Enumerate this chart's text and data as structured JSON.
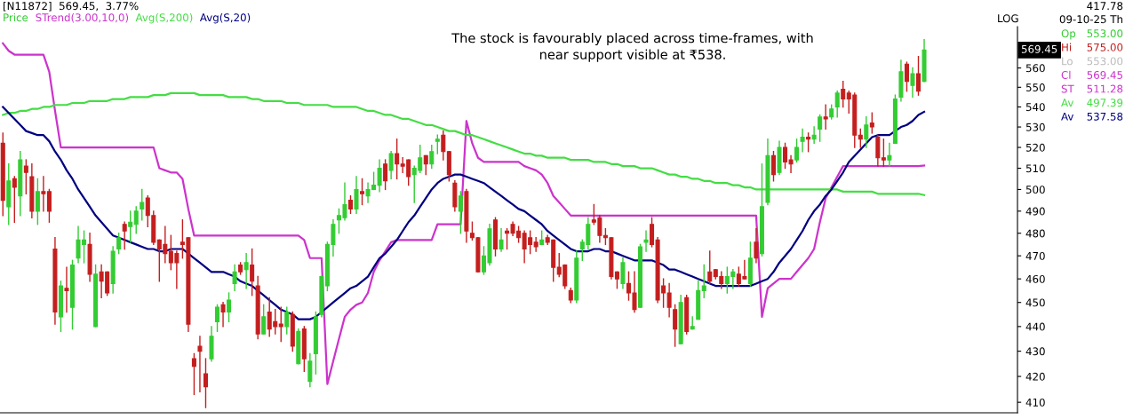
{
  "chart_data": {
    "type": "candlestick",
    "title": "[N11872]  569.45,  3.77%",
    "annotations": [
      "The stock is favourably placed across time-frames, with\nnear support visible at ₹538.",
      "LOG",
      "569.45",
      "417.78",
      "09-10-25 Th",
      "Op",
      "553.00",
      "Hi",
      "575.00",
      "Lo",
      "553.00",
      "Cl",
      "569.45",
      "ST",
      "511.28",
      "Av",
      "497.39",
      "Av",
      "537.58"
    ],
    "log": true,
    "tick_labels": "y",
    "categories": [
      null,
      null,
      null,
      null,
      null,
      null,
      null,
      null,
      null,
      null,
      null,
      null,
      null,
      null,
      null,
      null,
      null,
      null,
      null,
      null,
      null,
      null,
      null,
      null,
      null,
      null,
      null,
      null,
      null,
      null,
      null,
      null,
      null,
      null,
      null,
      null,
      null,
      null,
      null,
      null,
      null,
      null,
      null,
      null,
      null,
      null,
      null,
      null,
      null,
      null,
      null,
      null,
      null,
      null,
      null,
      null,
      null,
      null,
      null,
      null,
      null,
      null,
      null,
      null,
      null,
      null,
      null,
      null,
      null,
      null,
      null,
      null,
      null,
      null,
      null,
      null,
      null,
      null,
      null,
      null,
      null,
      null,
      null,
      null,
      null,
      null,
      null,
      null,
      null,
      null,
      null,
      null,
      null,
      null,
      null,
      null,
      null,
      null,
      null,
      null,
      null,
      null,
      null,
      null,
      null,
      null,
      null,
      null,
      null,
      null,
      null,
      null,
      null,
      null,
      null,
      null,
      null,
      null,
      null,
      null,
      null,
      null,
      null,
      null,
      null,
      null,
      null,
      null,
      null,
      null,
      null,
      null,
      null,
      null,
      null,
      null,
      null,
      null,
      null,
      null,
      null,
      null,
      null,
      null,
      null,
      null,
      null,
      null,
      null,
      null,
      null,
      null,
      null,
      null,
      null,
      null,
      null,
      null,
      null,
      null
    ],
    "ylim": [
      406,
      582
    ],
    "yticks": [
      410,
      420,
      430,
      440,
      450,
      460,
      470,
      480,
      490,
      500,
      510,
      520,
      530,
      540,
      550,
      560
    ],
    "series": [
      {
        "name": "Price",
        "colors": [
          "#c41e1e",
          "#33cc33",
          "#c41e1e",
          "#33cc33",
          "#c41e1e",
          "#c41e1e",
          "#33cc33",
          "#c41e1e",
          "#c41e1e",
          "#c41e1e",
          "#33cc33",
          "#c41e1e",
          "#33cc33",
          "#33cc33",
          "#33cc33",
          "#c41e1e",
          "#33cc33",
          "#c41e1e",
          "#c41e1e",
          "#33cc33",
          "#33cc33",
          "#c41e1e",
          "#33cc33",
          "#33cc33",
          "#33cc33",
          "#c41e1e",
          "#c41e1e",
          "#c41e1e",
          "#c41e1e",
          "#c41e1e",
          "#c41e1e",
          "#c41e1e",
          "#c41e1e",
          "#c41e1e",
          "#c41e1e",
          "#c41e1e",
          "#33cc33",
          "#33cc33",
          "#c41e1e",
          "#33cc33",
          "#33cc33",
          "#c41e1e",
          "#33cc33",
          "#c41e1e",
          "#c41e1e",
          "#33cc33",
          "#c41e1e",
          "#c41e1e",
          "#c41e1e",
          "#33cc33",
          "#c41e1e",
          "#33cc33",
          "#c41e1e",
          "#33cc33",
          "#33cc33",
          "#33cc33",
          "#33cc33",
          "#33cc33",
          "#33cc33",
          "#33cc33",
          "#c41e1e",
          "#33cc33",
          "#c41e1e",
          "#33cc33",
          "#33cc33",
          "#33cc33",
          "#c41e1e",
          "#33cc33",
          "#c41e1e",
          "#c41e1e",
          "#c41e1e",
          "#33cc33",
          "#33cc33",
          "#c41e1e",
          "#33cc33",
          "#33cc33",
          "#c41e1e",
          "#c41e1e",
          "#c41e1e",
          "#33cc33",
          "#c41e1e",
          "#c41e1e",
          "#c41e1e",
          "#33cc33",
          "#33cc33",
          "#c41e1e",
          "#33cc33",
          "#c41e1e",
          "#c41e1e",
          "#c41e1e",
          "#c41e1e",
          "#c41e1e",
          "#c41e1e",
          "#33cc33",
          "#c41e1e",
          "#c41e1e",
          "#c41e1e",
          "#c41e1e",
          "#c41e1e",
          "#33cc33",
          "#33cc33",
          "#33cc33",
          "#c41e1e",
          "#c41e1e",
          "#c41e1e",
          "#c41e1e",
          "#c41e1e",
          "#33cc33",
          "#c41e1e",
          "#c41e1e",
          "#33cc33",
          "#33cc33",
          "#c41e1e",
          "#c41e1e",
          "#c41e1e",
          "#c41e1e",
          "#c41e1e",
          "#33cc33",
          "#c41e1e",
          "#33cc33",
          "#33cc33",
          "#33cc33",
          "#c41e1e",
          "#c41e1e",
          "#c41e1e",
          "#33cc33",
          "#33cc33",
          "#c41e1e",
          "#c41e1e",
          "#33cc33",
          "#c41e1e",
          "#33cc33",
          "#33cc33",
          "#c41e1e",
          "#33cc33",
          "#c41e1e",
          "#c41e1e",
          "#33cc33",
          "#33cc33",
          "#c41e1e",
          "#33cc33",
          "#33cc33",
          "#c41e1e",
          "#33cc33",
          "#33cc33",
          "#c41e1e",
          "#c41e1e",
          "#c41e1e",
          "#c41e1e",
          "#33cc33",
          "#c41e1e",
          "#c41e1e",
          "#c41e1e",
          "#33cc33",
          "#33cc33",
          "#33cc33",
          "#c41e1e",
          "#33cc33",
          "#c41e1e",
          "#33cc33"
        ],
        "ohlc": [
          [
            522,
            527,
            488,
            495
          ],
          [
            492,
            512,
            484,
            504
          ],
          [
            505,
            506,
            485,
            501
          ],
          [
            497,
            518,
            488,
            514
          ],
          [
            511,
            514,
            498,
            508
          ],
          [
            506,
            512,
            487,
            490
          ],
          [
            490,
            505,
            484,
            499
          ],
          [
            499,
            506,
            490,
            498
          ],
          [
            499,
            500,
            485,
            490
          ],
          [
            473,
            478,
            441,
            446
          ],
          [
            444,
            459,
            438,
            457
          ],
          [
            456,
            465,
            446,
            455
          ],
          [
            448,
            468,
            439,
            466
          ],
          [
            469,
            483,
            467,
            477
          ],
          [
            475,
            481,
            467,
            477
          ],
          [
            475,
            480,
            459,
            462
          ],
          [
            440,
            466,
            440,
            462
          ],
          [
            463,
            466,
            452,
            459
          ],
          [
            463,
            463,
            453,
            454
          ],
          [
            458,
            474,
            454,
            472
          ],
          [
            473,
            480,
            471,
            478
          ],
          [
            484,
            485,
            473,
            481
          ],
          [
            483,
            490,
            476,
            485
          ],
          [
            484,
            492,
            480,
            490
          ],
          [
            491,
            500,
            486,
            494
          ],
          [
            496,
            497,
            483,
            488
          ],
          [
            488,
            490,
            475,
            476
          ],
          [
            477,
            477,
            459,
            473
          ],
          [
            475,
            483,
            467,
            471
          ],
          [
            472,
            479,
            464,
            467
          ],
          [
            471,
            472,
            456,
            467
          ],
          [
            476,
            486,
            469,
            475
          ],
          [
            478,
            478,
            438,
            441
          ],
          [
            427,
            429,
            413,
            424
          ],
          [
            432,
            436,
            414,
            430
          ],
          [
            421,
            427,
            408,
            416
          ],
          [
            427,
            440,
            426,
            436
          ],
          [
            442,
            449,
            438,
            448
          ],
          [
            449,
            450,
            440,
            446
          ],
          [
            446,
            454,
            442,
            451
          ],
          [
            458,
            466,
            455,
            463
          ],
          [
            466,
            467,
            462,
            463
          ],
          [
            464,
            471,
            456,
            467
          ],
          [
            466,
            473,
            453,
            459
          ],
          [
            457,
            461,
            435,
            437
          ],
          [
            437,
            449,
            437,
            444
          ],
          [
            446,
            452,
            436,
            439
          ],
          [
            442,
            447,
            437,
            440
          ],
          [
            441,
            448,
            434,
            440
          ],
          [
            440,
            448,
            437,
            446
          ],
          [
            445,
            446,
            430,
            432
          ],
          [
            425,
            439,
            425,
            438
          ],
          [
            439,
            440,
            422,
            427
          ],
          [
            418,
            429,
            416,
            426
          ],
          [
            429,
            446,
            421,
            444
          ],
          [
            445,
            461,
            444,
            461
          ],
          [
            457,
            476,
            455,
            475
          ],
          [
            475,
            486,
            470,
            484
          ],
          [
            486,
            491,
            480,
            488
          ],
          [
            487,
            503,
            486,
            493
          ],
          [
            495,
            497,
            489,
            491
          ],
          [
            491,
            506,
            489,
            500
          ],
          [
            499,
            505,
            493,
            498
          ],
          [
            497,
            503,
            494,
            500
          ],
          [
            500,
            508,
            500,
            502
          ],
          [
            502,
            514,
            499,
            510
          ],
          [
            512,
            514,
            500,
            504
          ],
          [
            509,
            518,
            505,
            517
          ],
          [
            517,
            524,
            505,
            512
          ],
          [
            512,
            515,
            508,
            511
          ],
          [
            514,
            514,
            502,
            506
          ],
          [
            507,
            511,
            494,
            510
          ],
          [
            509,
            521,
            508,
            515
          ],
          [
            516,
            516,
            507,
            512
          ],
          [
            512,
            521,
            510,
            518
          ],
          [
            523,
            526,
            517,
            524
          ],
          [
            526,
            528,
            514,
            518
          ],
          [
            518,
            518,
            504,
            507
          ],
          [
            503,
            504,
            490,
            492
          ],
          [
            490,
            499,
            480,
            497
          ],
          [
            499,
            500,
            476,
            481
          ],
          [
            480,
            485,
            477,
            478
          ],
          [
            478,
            478,
            463,
            463
          ],
          [
            463,
            474,
            462,
            470
          ],
          [
            467,
            484,
            466,
            482
          ],
          [
            486,
            487,
            470,
            473
          ],
          [
            473,
            482,
            472,
            477
          ],
          [
            481,
            482,
            473,
            480
          ],
          [
            484,
            485,
            479,
            480
          ],
          [
            481,
            483,
            476,
            478
          ],
          [
            480,
            481,
            467,
            473
          ],
          [
            478,
            481,
            471,
            475
          ],
          [
            476,
            478,
            472,
            474
          ],
          [
            475,
            481,
            475,
            477
          ],
          [
            478,
            479,
            475,
            476
          ],
          [
            477,
            477,
            459,
            465
          ],
          [
            465,
            471,
            461,
            462
          ],
          [
            466,
            466,
            456,
            457
          ],
          [
            455,
            456,
            450,
            451
          ],
          [
            451,
            472,
            450,
            469
          ],
          [
            473,
            477,
            468,
            476
          ],
          [
            475,
            487,
            473,
            484
          ],
          [
            486,
            493,
            484,
            485
          ],
          [
            487,
            488,
            476,
            479
          ],
          [
            479,
            482,
            475,
            478
          ],
          [
            478,
            478,
            460,
            461
          ],
          [
            463,
            463,
            456,
            460
          ],
          [
            458,
            469,
            456,
            467
          ],
          [
            458,
            463,
            451,
            454
          ],
          [
            454,
            463,
            446,
            447
          ],
          [
            448,
            475,
            448,
            474
          ],
          [
            476,
            481,
            472,
            477
          ],
          [
            484,
            487,
            474,
            475
          ],
          [
            477,
            478,
            450,
            451
          ],
          [
            457,
            460,
            448,
            454
          ],
          [
            454,
            458,
            444,
            448
          ],
          [
            447,
            449,
            432,
            439
          ],
          [
            433,
            453,
            433,
            450
          ],
          [
            452,
            453,
            437,
            438
          ],
          [
            439,
            444,
            439,
            440
          ],
          [
            443,
            459,
            443,
            455
          ],
          [
            455,
            466,
            452,
            457
          ],
          [
            463,
            472,
            458,
            459
          ],
          [
            464,
            464,
            460,
            461
          ],
          [
            461,
            463,
            456,
            458
          ],
          [
            458,
            465,
            454,
            461
          ],
          [
            461,
            464,
            456,
            463
          ],
          [
            462,
            465,
            457,
            458
          ],
          [
            461,
            468,
            460,
            460
          ],
          [
            458,
            476,
            457,
            469
          ],
          [
            476,
            482,
            467,
            469
          ],
          [
            471,
            512,
            470,
            492
          ],
          [
            494,
            524,
            493,
            516
          ],
          [
            516,
            518,
            504,
            507
          ],
          [
            508,
            523,
            507,
            520
          ],
          [
            520,
            522,
            510,
            513
          ],
          [
            514,
            516,
            508,
            512
          ],
          [
            514,
            524,
            513,
            520
          ],
          [
            523,
            529,
            518,
            525
          ],
          [
            525,
            527,
            518,
            524
          ],
          [
            524,
            530,
            522,
            526
          ],
          [
            529,
            536,
            523,
            535
          ],
          [
            535,
            541,
            529,
            534
          ],
          [
            535,
            541,
            534,
            539
          ],
          [
            540,
            548,
            535,
            547
          ],
          [
            549,
            553,
            540,
            544
          ],
          [
            547,
            548,
            537,
            544
          ],
          [
            546,
            547,
            520,
            526
          ],
          [
            526,
            529,
            520,
            524
          ],
          [
            524,
            535,
            520,
            531
          ],
          [
            532,
            537,
            527,
            530
          ],
          [
            525,
            526,
            511,
            515
          ],
          [
            515,
            524,
            511,
            514
          ],
          [
            514,
            522,
            511,
            516
          ],
          [
            522,
            546,
            522,
            544
          ],
          [
            545,
            564,
            543,
            558
          ],
          [
            562,
            563,
            548,
            553
          ],
          [
            551,
            560,
            545,
            557
          ],
          [
            557,
            566,
            546,
            548
          ],
          [
            553,
            575,
            553,
            569.45
          ]
        ]
      },
      {
        "name": "STrend(3.00,10,0)",
        "type": "line",
        "color": "#cc33cc",
        "values": [
          573,
          569,
          567,
          567,
          567,
          567,
          567,
          567,
          558,
          538,
          520,
          520,
          520,
          520,
          520,
          520,
          520,
          520,
          520,
          520,
          520,
          520,
          520,
          520,
          520,
          520,
          520,
          510,
          509,
          508,
          508,
          505,
          491,
          479,
          479,
          479,
          479,
          479,
          479,
          479,
          479,
          479,
          479,
          479,
          479,
          479,
          479,
          479,
          479,
          479,
          479,
          479,
          477,
          469,
          469,
          469,
          417,
          426,
          435,
          444,
          447,
          449,
          450,
          454,
          463,
          468,
          472,
          476,
          477,
          477,
          477,
          477,
          477,
          477,
          477,
          484,
          484,
          484,
          484,
          484,
          533,
          522,
          515,
          513,
          513,
          513,
          513,
          513,
          513,
          513,
          511,
          510,
          509,
          507,
          503,
          497,
          494,
          491,
          488,
          488,
          488,
          488,
          488,
          488,
          488,
          488,
          488,
          488,
          488,
          488,
          488,
          488,
          488,
          488,
          488,
          488,
          488,
          488,
          488,
          488,
          488,
          488,
          488,
          488,
          488,
          488,
          488,
          488,
          488,
          488,
          488,
          444,
          456,
          458,
          460,
          460,
          460,
          463,
          466,
          469,
          473,
          485,
          496,
          501,
          506,
          511,
          511,
          511,
          511,
          511,
          511,
          511,
          511,
          511,
          511,
          511,
          511,
          511,
          511,
          511.28
        ]
      },
      {
        "name": "Avg(S,200)",
        "type": "line",
        "color": "#44dd44",
        "values": [
          536,
          537,
          537,
          538,
          538,
          539,
          539,
          540,
          540,
          541,
          541,
          541,
          542,
          542,
          542,
          543,
          543,
          543,
          543,
          544,
          544,
          544,
          545,
          545,
          545,
          545,
          546,
          546,
          546,
          547,
          547,
          547,
          547,
          547,
          546,
          546,
          546,
          546,
          546,
          545,
          545,
          545,
          545,
          544,
          544,
          543,
          543,
          543,
          543,
          542,
          542,
          542,
          541,
          541,
          541,
          541,
          541,
          540,
          540,
          540,
          540,
          540,
          539,
          538,
          538,
          537,
          536,
          536,
          535,
          534,
          534,
          533,
          532,
          531,
          531,
          530,
          529,
          528,
          528,
          527,
          526,
          526,
          525,
          524,
          523,
          522,
          521,
          520,
          519,
          518,
          517,
          517,
          516,
          516,
          515,
          515,
          515,
          515,
          514,
          514,
          514,
          514,
          513,
          513,
          513,
          512,
          512,
          511,
          511,
          511,
          510,
          510,
          510,
          509,
          508,
          507,
          507,
          506,
          506,
          505,
          505,
          504,
          504,
          503,
          503,
          503,
          502,
          502,
          501,
          501,
          500,
          500,
          500,
          500,
          500,
          500,
          500,
          500,
          500,
          500,
          500,
          500,
          500,
          500,
          500,
          499,
          499,
          499,
          499,
          499,
          499,
          498,
          498,
          498,
          498,
          498,
          498,
          498,
          498,
          497.39
        ]
      },
      {
        "name": "Avg(S,20)",
        "type": "line",
        "color": "#000080",
        "values": [
          540,
          537,
          534,
          531,
          528,
          527,
          526,
          526,
          523,
          518,
          514,
          509,
          505,
          500,
          496,
          492,
          488,
          485,
          482,
          479,
          478,
          477,
          476,
          475,
          474,
          473,
          473,
          472,
          472,
          473,
          473,
          473,
          471,
          469,
          467,
          465,
          463,
          463,
          463,
          462,
          461,
          459,
          458,
          457,
          455,
          453,
          451,
          449,
          447,
          446,
          445,
          443,
          443,
          443,
          444,
          446,
          448,
          450,
          452,
          454,
          456,
          457,
          459,
          461,
          465,
          469,
          471,
          474,
          477,
          481,
          485,
          488,
          492,
          496,
          500,
          503,
          505,
          506,
          507,
          507,
          506,
          505,
          504,
          503,
          501,
          499,
          497,
          495,
          493,
          491,
          490,
          488,
          486,
          484,
          481,
          479,
          477,
          475,
          473,
          472,
          472,
          472,
          473,
          473,
          472,
          472,
          471,
          470,
          469,
          468,
          468,
          468,
          468,
          467,
          466,
          464,
          464,
          463,
          462,
          461,
          460,
          459,
          458,
          457,
          457,
          457,
          457,
          457,
          457,
          457,
          458,
          459,
          460,
          463,
          467,
          470,
          473,
          477,
          481,
          486,
          490,
          493,
          497,
          500,
          504,
          508,
          513,
          516,
          519,
          522,
          525,
          526,
          526,
          526,
          528,
          530,
          531,
          533,
          536,
          537.58
        ]
      }
    ]
  }
}
